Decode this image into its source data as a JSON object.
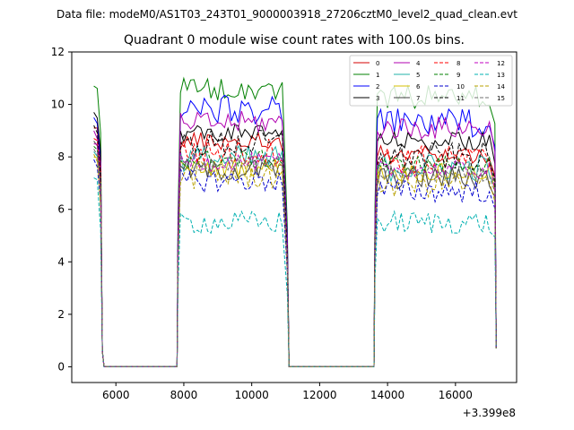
{
  "figure": {
    "suptitle": "Data file: modeM0/AS1T03_243T01_9000003918_27206cztM0_level2_quad_clean.evt"
  },
  "chart_data": {
    "type": "line",
    "title": "Quadrant 0 module wise count rates with 100.0s bins.",
    "xlabel": "",
    "ylabel": "",
    "x_offset_label": "+3.399e8",
    "xlim": [
      4700,
      17800
    ],
    "ylim": [
      -0.6,
      12
    ],
    "xticks": [
      6000,
      8000,
      10000,
      12000,
      14000,
      16000
    ],
    "xtick_labels": [
      "6000",
      "8000",
      "10000",
      "12000",
      "14000",
      "16000"
    ],
    "yticks": [
      0,
      2,
      4,
      6,
      8,
      10,
      12
    ],
    "ytick_labels": [
      "0",
      "2",
      "4",
      "6",
      "8",
      "10",
      "12"
    ],
    "grid": false,
    "legend_location": "top-right",
    "legend_columns": 4,
    "time_segments": [
      {
        "start": 5350,
        "end": 5650,
        "type": "drop"
      },
      {
        "start": 5650,
        "end": 7800,
        "type": "gap"
      },
      {
        "start": 7800,
        "end": 11100,
        "type": "data"
      },
      {
        "start": 11100,
        "end": 13600,
        "type": "gap"
      },
      {
        "start": 13600,
        "end": 17200,
        "type": "data"
      }
    ],
    "series": [
      {
        "name": "0",
        "color": "#d40000",
        "dash": "solid",
        "start": 9.1,
        "level1": 8.6,
        "level2": 8.1
      },
      {
        "name": "1",
        "color": "#008000",
        "dash": "solid",
        "start": 10.7,
        "level1": 10.6,
        "level2": 10.3
      },
      {
        "name": "2",
        "color": "#0000ff",
        "dash": "solid",
        "start": 9.5,
        "level1": 9.8,
        "level2": 9.3
      },
      {
        "name": "3",
        "color": "#000000",
        "dash": "solid",
        "start": 9.7,
        "level1": 8.9,
        "level2": 8.6
      },
      {
        "name": "4",
        "color": "#b000b0",
        "dash": "solid",
        "start": 9.0,
        "level1": 9.3,
        "level2": 9.1
      },
      {
        "name": "5",
        "color": "#20b2aa",
        "dash": "solid",
        "start": 8.2,
        "level1": 7.9,
        "level2": 7.6
      },
      {
        "name": "6",
        "color": "#d4c000",
        "dash": "solid",
        "start": 8.0,
        "level1": 7.6,
        "level2": 7.4
      },
      {
        "name": "7",
        "color": "#404040",
        "dash": "solid",
        "start": 8.6,
        "level1": 7.5,
        "level2": 7.2
      },
      {
        "name": "8",
        "color": "#ff0000",
        "dash": "dashed",
        "start": 8.7,
        "level1": 8.2,
        "level2": 7.9
      },
      {
        "name": "9",
        "color": "#008000",
        "dash": "dashed",
        "start": 8.4,
        "level1": 7.9,
        "level2": 7.7
      },
      {
        "name": "10",
        "color": "#0000cd",
        "dash": "dashed",
        "start": 7.9,
        "level1": 7.1,
        "level2": 6.7
      },
      {
        "name": "11",
        "color": "#000000",
        "dash": "dashed",
        "start": 9.2,
        "level1": 8.5,
        "level2": 8.0
      },
      {
        "name": "12",
        "color": "#c000c0",
        "dash": "dashed",
        "start": 8.5,
        "level1": 7.8,
        "level2": 7.5
      },
      {
        "name": "13",
        "color": "#00b0b0",
        "dash": "dashed",
        "start": 7.2,
        "level1": 5.5,
        "level2": 5.5
      },
      {
        "name": "14",
        "color": "#b8a000",
        "dash": "dashed",
        "start": 8.1,
        "level1": 7.3,
        "level2": 7.0
      },
      {
        "name": "15",
        "color": "#707070",
        "dash": "dashed",
        "start": 8.3,
        "level1": 7.7,
        "level2": 7.4
      }
    ]
  }
}
